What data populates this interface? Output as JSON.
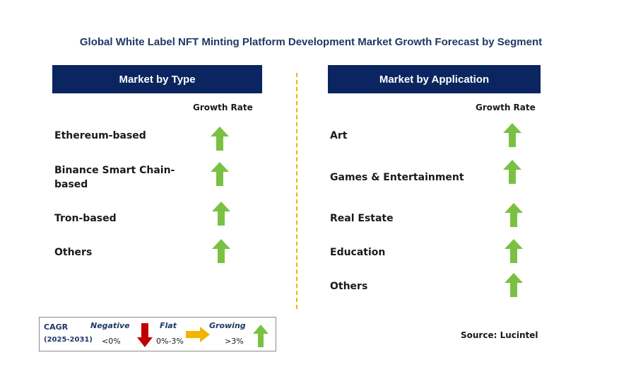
{
  "title": "Global White Label NFT Minting Platform Development Market Growth Forecast by Segment",
  "colors": {
    "header_bg": "#0b2560",
    "up_arrow": "#7ac143",
    "down_arrow": "#c00000",
    "flat_arrow": "#f2b400",
    "divider": "#f2b400"
  },
  "chart_data": {
    "type": "table",
    "panels": [
      {
        "header": "Market by Type",
        "column_label": "Growth Rate",
        "rows": [
          {
            "label": "Ethereum-based",
            "growth": "growing"
          },
          {
            "label": "Binance Smart Chain-based",
            "growth": "growing"
          },
          {
            "label": "Tron-based",
            "growth": "growing"
          },
          {
            "label": "Others",
            "growth": "growing"
          }
        ]
      },
      {
        "header": "Market by Application",
        "column_label": "Growth Rate",
        "rows": [
          {
            "label": "Art",
            "growth": "growing"
          },
          {
            "label": "Games & Entertainment",
            "growth": "growing"
          },
          {
            "label": "Real Estate",
            "growth": "growing"
          },
          {
            "label": "Education",
            "growth": "growing"
          },
          {
            "label": "Others",
            "growth": "growing"
          }
        ]
      }
    ]
  },
  "legend": {
    "cagr_label": "CAGR",
    "period": "(2025-2031)",
    "negative": {
      "label": "Negative",
      "range": "<0%",
      "icon": "down-arrow-icon"
    },
    "flat": {
      "label": "Flat",
      "range": "0%-3%",
      "icon": "right-arrow-icon"
    },
    "growing": {
      "label": "Growing",
      "range": ">3%",
      "icon": "up-arrow-icon"
    }
  },
  "source": "Source: Lucintel"
}
